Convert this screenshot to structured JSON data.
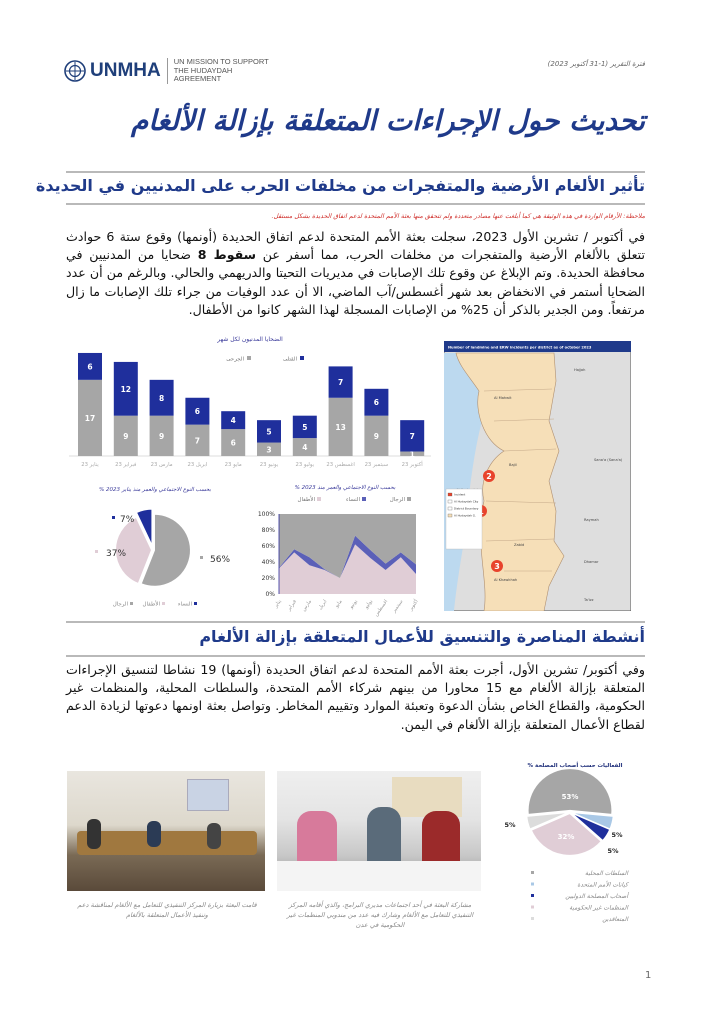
{
  "header": {
    "logo_text": "UNMHA",
    "logo_subtitle": [
      "UN MISSION TO SUPPORT",
      "THE HUDAYDAH",
      "AGREEMENT"
    ],
    "report_period": "فترة التقرير (1-31 أكتوبر 2023)"
  },
  "title": "تحديث حول الإجراءات المتعلقة بإزالة الألغام",
  "section1": {
    "heading": "تأثير الألغام الأرضية والمتفجرات من مخلفات الحرب على المدنيين في الحديدة",
    "note": "ملاحظة: الأرقام الواردة في هذه الوثيقة هي كما أبلغت عنها مصادر متعددة ولم تتحقق منها بعثة الأمم المتحدة لدعم اتفاق الحديدة بشكل مستقل.",
    "para_a": "في أكتوبر / تشرين الأول 2023، سجلت بعثة الأمم المتحدة لدعم اتفاق الحديدة (أونمها) وقوع ستة 6 حوادث تتعلق بالألغام الأرضية والمتفجرات من مخلفات الحرب، مما أسفر عن ",
    "para_bold": "سقوط 8",
    "para_b": " ضحايا من المدنيين في محافظة الحديدة. وتم الإبلاغ عن وقوع تلك الإصابات في مديريات التحيتا والدريهمي والحالي. وبالرغم من أن عدد الضحايا أستمر في الانخفاض بعد شهر أغسطس/آب الماضي، الا أن عدد الوفيات من جراء تلك الإصابات ما زال مرتفعاً. ومن الجدير بالذكر أن 25% من الإصابات المسجلة لهذا الشهر كانوا من الأطفال."
  },
  "map": {
    "title": "Number of landmine and ERW incidents per district as of october 2023",
    "labels": [
      "Hajjah",
      "Al Mahwit",
      "Sana'a (Sana'a)",
      "Al Hudaydah",
      "Raymah",
      "Dhamar",
      "Ta'izz",
      "Bajil",
      "Zabid",
      "Al Khawkhah"
    ],
    "incidents": [
      "2",
      "1",
      "3"
    ],
    "legend": [
      "Incident",
      "Al Hudaydah City",
      "District Boundary",
      "Al Hudaydah G."
    ],
    "colors": {
      "sea": "#bcd9ef",
      "land": "#f6dfb8",
      "other": "#dedede",
      "incident": "#e8432c",
      "header": "#1f3a8a"
    }
  },
  "chart_data": [
    {
      "type": "bar",
      "stacked": true,
      "title": "الضحايا المدنيون لكل شهر",
      "categories": [
        "يناير 23",
        "فبراير 23",
        "مارس 23",
        "ابريل 23",
        "مايو 23",
        "يونيو 23",
        "يوليو 23",
        "اغسطس 23",
        "سبتمبر 23",
        "أكتوبر 23"
      ],
      "series": [
        {
          "name": "الجرحى",
          "values": [
            17,
            9,
            9,
            7,
            6,
            3,
            4,
            13,
            9,
            1
          ],
          "color": "#a6a6a6"
        },
        {
          "name": "القتلى",
          "values": [
            6,
            12,
            8,
            6,
            4,
            5,
            5,
            7,
            6,
            7
          ],
          "color": "#1f2f9c"
        }
      ],
      "legend": "top",
      "grid": false
    },
    {
      "type": "pie",
      "title": "% بحسب النوع الاجتماعي والعمر منذ يناير 2023",
      "slices": [
        {
          "name": "الرجال",
          "value": 56,
          "label": "56%",
          "color": "#a6a6a6"
        },
        {
          "name": "الأطفال",
          "value": 37,
          "label": "37%",
          "color": "#e0cdd6"
        },
        {
          "name": "النساء",
          "value": 7,
          "label": "7%",
          "color": "#1f2f9c"
        }
      ],
      "legend": "bottom"
    },
    {
      "type": "area",
      "stacked": true,
      "percent": true,
      "title": "% بحسب النوع الاجتماعي والعمر منذ 2023",
      "categories": [
        "يناير",
        "فبراير",
        "مارس",
        "ابريل",
        "مايو",
        "يونيو",
        "يوليو",
        "اغسطس",
        "سبتمبر",
        "أكتوبر"
      ],
      "series": [
        {
          "name": "الأطفال",
          "values": [
            32,
            52,
            36,
            30,
            20,
            62,
            45,
            30,
            46,
            25
          ],
          "color": "#e0cdd6"
        },
        {
          "name": "النساء",
          "values": [
            1,
            4,
            10,
            1,
            0,
            11,
            10,
            8,
            6,
            12
          ],
          "color": "#5b60b8"
        },
        {
          "name": "الرجال",
          "values": [
            67,
            44,
            54,
            69,
            80,
            27,
            45,
            62,
            48,
            63
          ],
          "color": "#a6a6a6"
        }
      ],
      "yticks": [
        "0%",
        "20%",
        "40%",
        "60%",
        "80%",
        "100%"
      ],
      "ylim": [
        0,
        100
      ],
      "legend": "top"
    },
    {
      "type": "pie",
      "title": "% الفعاليات حسب أصحاب المصلحة",
      "slices": [
        {
          "name": "السلطات المحلية",
          "value": 53,
          "label": "53%",
          "color": "#a6a6a6"
        },
        {
          "name": "كيانات الأمم المتحدة",
          "value": 5,
          "label": "5%",
          "color": "#a9c8e6"
        },
        {
          "name": "أصحاب المصلحة الدوليين",
          "value": 5,
          "label": "5%",
          "color": "#1f2f9c"
        },
        {
          "name": "المنظمات غير الحكومية",
          "value": 32,
          "label": "32%",
          "color": "#e0cdd6"
        },
        {
          "name": "المتعاقدين",
          "value": 5,
          "label": "5%",
          "color": "#dcdcdc"
        }
      ],
      "legend": "bottom"
    }
  ],
  "section2": {
    "heading": "أنشطة المناصرة والتنسيق للأعمال المتعلقة بإزالة الألغام",
    "para": "وفي أكتوبر/ تشرين الأول، أجرت بعثة الأمم المتحدة لدعم اتفاق الحديدة (أونمها) 19 نشاطا لتنسيق الإجراءات المتعلقة بإزالة الألغام مع 15 محاورا من بينهم شركاء الأمم المتحدة، والسلطات المحلية، والمنظمات غير الحكومية، والقطاع الخاص بشأن الدعوة وتعبئة الموارد وتقييم المخاطر. وتواصل بعثة اونمها دعوتها لزيادة الدعم لقطاع الأعمال المتعلقة بإزالة الألغام في اليمن.",
    "photo_captions": [
      "قامت البعثة بزيارة المركز التنفيذي للتعامل مع الألغام لمناقشة دعم وتنفيذ الأعمال المتعلقة بالألغام",
      "مشاركة البعثة في أحد اجتماعات مديري البرامج، والذي أقامه المركز التنفيذي للتعامل مع الألغام وشارك فيه عدد من مندوبي المنظمات غير الحكومية في عدن"
    ]
  },
  "footer": {
    "page_number": "1"
  }
}
